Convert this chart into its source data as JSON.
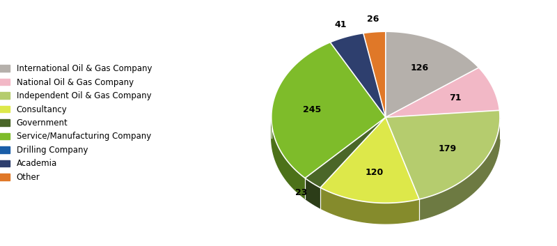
{
  "labels": [
    "International Oil & Gas Company",
    "National Oil & Gas Company",
    "Independent Oil & Gas Company",
    "Consultancy",
    "Government",
    "Service/Manufacturing Company",
    "Drilling Company",
    "Academia",
    "Other"
  ],
  "values": [
    126,
    71,
    179,
    120,
    23,
    245,
    0,
    41,
    26
  ],
  "colors": [
    "#b5b0ab",
    "#f2b8c6",
    "#b5cc6e",
    "#dde84a",
    "#4a6628",
    "#7ebc2a",
    "#1a5ea8",
    "#2e3f6e",
    "#e07828"
  ],
  "legend_labels": [
    "International Oil & Gas Company",
    "National Oil & Gas Company",
    "Independent Oil & Gas Company",
    "Consultancy",
    "Government",
    "Service/Manufacturing Company",
    "Drilling Company",
    "Academia",
    "Other"
  ],
  "legend_colors": [
    "#b5b0ab",
    "#f2b8c6",
    "#b5cc6e",
    "#dde84a",
    "#4a6628",
    "#7ebc2a",
    "#1a5ea8",
    "#2e3f6e",
    "#e07828"
  ],
  "startangle": 90,
  "figsize": [
    8.0,
    3.53
  ],
  "label_fontsize": 9,
  "legend_fontsize": 8.5
}
